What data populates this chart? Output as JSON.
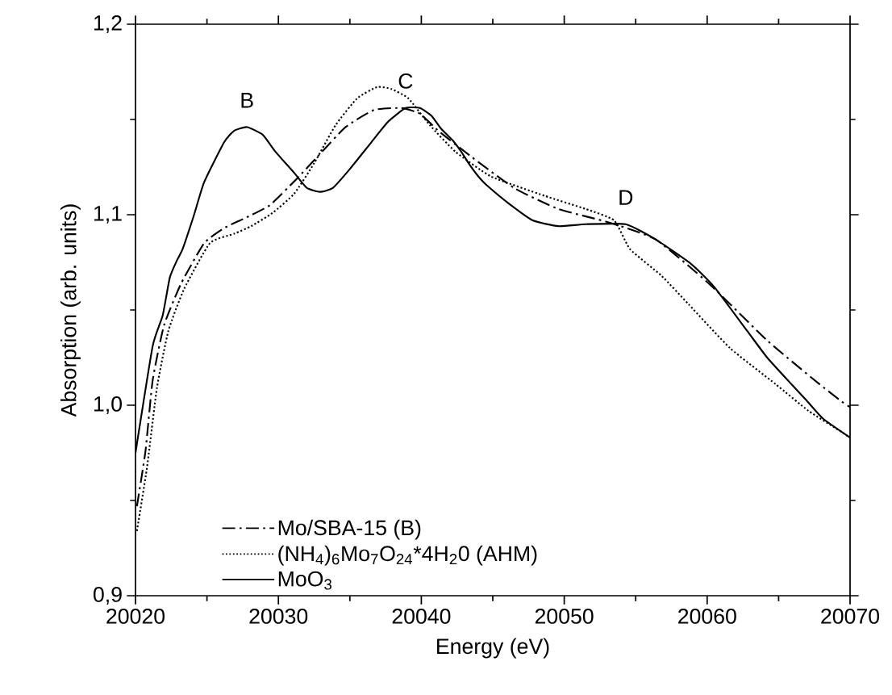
{
  "chart_data": {
    "type": "line",
    "xlabel": "Energy (eV)",
    "ylabel": "Absorption (arb. units)",
    "xlim": [
      20020,
      20070
    ],
    "ylim": [
      0.9,
      1.2
    ],
    "xticks": [
      20020,
      20030,
      20040,
      20050,
      20060,
      20070
    ],
    "yticks": [
      {
        "value": 0.9,
        "label": "0,9"
      },
      {
        "value": 1.0,
        "label": "1,0"
      },
      {
        "value": 1.1,
        "label": "1,1"
      },
      {
        "value": 1.2,
        "label": "1,2"
      }
    ],
    "legend": "bottom left",
    "grid": false,
    "annotations": [
      {
        "text": "B",
        "x": 20027.8,
        "y": 1.146
      },
      {
        "text": "C",
        "x": 20038.9,
        "y": 1.156
      },
      {
        "text": "D",
        "x": 20054.3,
        "y": 1.095
      }
    ],
    "series": [
      {
        "name": "Mo/SBA-15 (B)",
        "color": "#000000",
        "line_style": "dashdotted",
        "x": [
          20020.1,
          20020.7,
          20021.2,
          20022.0,
          20023.2,
          20024.8,
          20026.2,
          20027.6,
          20029.4,
          20031.3,
          20032.8,
          20034.7,
          20036.7,
          20038.6,
          20039.9,
          20041.2,
          20043.4,
          20046.5,
          20049.6,
          20053.1,
          20056.4,
          20060.1,
          20064.2,
          20067.7,
          20069.4,
          20070
        ],
        "values": [
          0.947,
          0.976,
          1.013,
          1.042,
          1.064,
          1.085,
          1.093,
          1.098,
          1.105,
          1.119,
          1.131,
          1.146,
          1.155,
          1.156,
          1.153,
          1.144,
          1.131,
          1.114,
          1.103,
          1.096,
          1.087,
          1.064,
          1.034,
          1.012,
          1.002,
          0.999
        ]
      },
      {
        "name": "(NH$_{4}$)$_{6}$Mo$_{7}$O$_{24}$*4H$_{2}$0 (AHM)",
        "color": "#000000",
        "line_style": "dotted",
        "x": [
          20020.1,
          20020.8,
          20021.5,
          20022.3,
          20023.4,
          20025.2,
          20026.9,
          20028.1,
          20029.6,
          20031.1,
          20032.5,
          20034.0,
          20035.5,
          20036.9,
          20037.9,
          20039.1,
          20040.6,
          20042.4,
          20044.9,
          20048.6,
          20051.5,
          20053.5,
          20054.6,
          20056.8,
          20058.7,
          20061.6,
          20064.8,
          20067.1,
          20069.4,
          20070
        ],
        "values": [
          0.934,
          0.967,
          1.009,
          1.039,
          1.061,
          1.085,
          1.09,
          1.094,
          1.101,
          1.111,
          1.127,
          1.147,
          1.161,
          1.167,
          1.166,
          1.161,
          1.147,
          1.133,
          1.12,
          1.11,
          1.103,
          1.097,
          1.082,
          1.068,
          1.053,
          1.03,
          1.011,
          0.997,
          0.986,
          0.983
        ]
      },
      {
        "name": "MoO$_{3}$",
        "color": "#000000",
        "line_style": "solid",
        "x": [
          20020.0,
          20021.2,
          20021.9,
          20022.4,
          20022.9,
          20023.3,
          20024.1,
          20024.8,
          20026.2,
          20026.9,
          20027.8,
          20028.9,
          20029.8,
          20031.1,
          20032.0,
          20032.9,
          20033.8,
          20035.0,
          20036.5,
          20037.7,
          20038.9,
          20039.9,
          20040.7,
          20041.4,
          20042.2,
          20042.8,
          20043.4,
          20044.0,
          20044.5,
          20046.1,
          20047.8,
          20049.6,
          20051.5,
          20054.3,
          20056.4,
          20058.9,
          20060.5,
          20062.8,
          20064.2,
          20065.9,
          20066.9,
          20068.1,
          20070
        ],
        "values": [
          0.975,
          1.031,
          1.047,
          1.067,
          1.076,
          1.082,
          1.1,
          1.117,
          1.138,
          1.144,
          1.146,
          1.142,
          1.133,
          1.122,
          1.114,
          1.112,
          1.114,
          1.124,
          1.138,
          1.149,
          1.156,
          1.156,
          1.152,
          1.145,
          1.139,
          1.133,
          1.126,
          1.12,
          1.116,
          1.106,
          1.097,
          1.094,
          1.095,
          1.095,
          1.087,
          1.074,
          1.062,
          1.039,
          1.025,
          1.011,
          1.003,
          0.993,
          0.983
        ]
      }
    ]
  }
}
